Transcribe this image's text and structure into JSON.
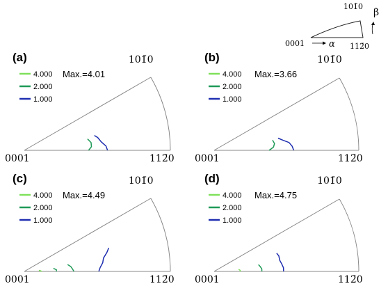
{
  "key": {
    "origin": "0001",
    "corner_x": "112̄0",
    "corner_y": "101̄0",
    "alpha": "α",
    "beta": "β"
  },
  "chart_data": [
    {
      "type": "contour",
      "panel": "(a)",
      "origin_label": "0001",
      "x_corner_label": "112̄0",
      "y_corner_label": "101̄0",
      "max_label": "Max.=4.01",
      "levels": [
        {
          "label": "4.000",
          "color": "#7fe05a",
          "points": []
        },
        {
          "label": "2.000",
          "color": "#1e9a57",
          "points": [
            [
              0.44,
              0.0
            ],
            [
              0.46,
              0.1
            ],
            [
              0.46,
              0.22
            ],
            [
              0.44,
              0.34
            ]
          ]
        },
        {
          "label": "1.000",
          "color": "#1f2fb0",
          "points": [
            [
              0.57,
              0.0
            ],
            [
              0.56,
              0.1
            ],
            [
              0.53,
              0.21
            ],
            [
              0.51,
              0.33
            ],
            [
              0.49,
              0.4
            ]
          ]
        }
      ]
    },
    {
      "type": "contour",
      "panel": "(b)",
      "origin_label": "0001",
      "x_corner_label": "112̄0",
      "y_corner_label": "101̄0",
      "max_label": "Max.=3.66",
      "levels": [
        {
          "label": "4.000",
          "color": "#7fe05a",
          "points": []
        },
        {
          "label": "2.000",
          "color": "#1e9a57",
          "points": [
            [
              0.38,
              0.0
            ],
            [
              0.41,
              0.1
            ],
            [
              0.42,
              0.21
            ],
            [
              0.41,
              0.33
            ]
          ]
        },
        {
          "label": "1.000",
          "color": "#1f2fb0",
          "points": [
            [
              0.55,
              0.0
            ],
            [
              0.54,
              0.1
            ],
            [
              0.52,
              0.2
            ],
            [
              0.48,
              0.28
            ],
            [
              0.45,
              0.36
            ]
          ]
        }
      ]
    },
    {
      "type": "contour",
      "panel": "(c)",
      "origin_label": "0001",
      "x_corner_label": "112̄0",
      "y_corner_label": "101̄0",
      "max_label": "Max.=4.49",
      "levels": [
        {
          "label": "4.000",
          "color": "#7fe05a",
          "points": [
            [
              0.12,
              0.0
            ],
            [
              0.11,
              0.08
            ],
            [
              0.1,
              0.14
            ]
          ]
        },
        {
          "label": "2.000",
          "color": "#1e9a57",
          "points": [
            [
              0.22,
              0.0
            ],
            [
              0.22,
              0.1
            ],
            [
              0.2,
              0.2
            ]
          ]
        },
        {
          "label": "2.000",
          "color": "#1e9a57",
          "points": [
            [
              0.34,
              0.0
            ],
            [
              0.33,
              0.1
            ],
            [
              0.32,
              0.2
            ],
            [
              0.3,
              0.3
            ]
          ]
        },
        {
          "label": "1.000",
          "color": "#1f2fb0",
          "points": [
            [
              0.51,
              0.0
            ],
            [
              0.52,
              0.1
            ],
            [
              0.54,
              0.21
            ],
            [
              0.55,
              0.32
            ],
            [
              0.58,
              0.43
            ],
            [
              0.6,
              0.52
            ]
          ]
        }
      ]
    },
    {
      "type": "contour",
      "panel": "(d)",
      "origin_label": "0001",
      "x_corner_label": "112̄0",
      "y_corner_label": "101̄0",
      "max_label": "Max.=4.75",
      "levels": [
        {
          "label": "4.000",
          "color": "#7fe05a",
          "points": [
            [
              0.18,
              0.0
            ],
            [
              0.18,
              0.08
            ],
            [
              0.17,
              0.16
            ]
          ]
        },
        {
          "label": "2.000",
          "color": "#1e9a57",
          "points": [
            [
              0.33,
              0.0
            ],
            [
              0.33,
              0.1
            ],
            [
              0.32,
              0.2
            ],
            [
              0.31,
              0.29
            ]
          ]
        },
        {
          "label": "1.000",
          "color": "#1f2fb0",
          "points": [
            [
              0.48,
              0.0
            ],
            [
              0.48,
              0.1
            ],
            [
              0.47,
              0.21
            ],
            [
              0.46,
              0.32
            ],
            [
              0.46,
              0.45
            ],
            [
              0.45,
              0.54
            ]
          ]
        }
      ]
    }
  ]
}
